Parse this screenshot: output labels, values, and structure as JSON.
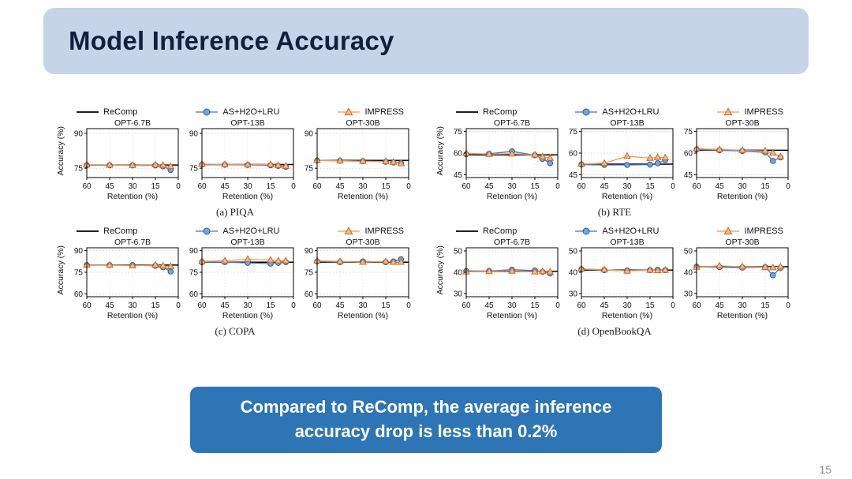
{
  "slide": {
    "title": "Model Inference Accuracy",
    "page_number": "15",
    "callout": {
      "line1": "Compared to ReComp, the average inference",
      "line2": "accuracy drop is less than 0.2%"
    }
  },
  "legend": [
    "ReComp",
    "AS+H2O+LRU",
    "IMPRESS"
  ],
  "colors": {
    "header_bg": "#c6d4ea",
    "title_text": "#13203c",
    "callout_bg": "#2e75b6",
    "recomp_line": "#000000",
    "as_line": "#4472c4",
    "as_fill": "#6fa8dc",
    "as_edge": "#2e5b9e",
    "impress_line": "#ef9a4f",
    "impress_fill": "#f6b98b",
    "impress_edge": "#c96a1f"
  },
  "chart_data": [
    {
      "caption": "(a) PIQA",
      "xlabel": "Retention (%)",
      "ylabel": "Accuracy (%)",
      "x": [
        60,
        45,
        30,
        15,
        10,
        5
      ],
      "xticks": [
        60,
        45,
        30,
        15,
        0
      ],
      "subplots": [
        {
          "title": "OPT-6.7B",
          "ylim": [
            71,
            92
          ],
          "yticks": [
            75,
            90
          ],
          "series": [
            {
              "name": "ReComp",
              "value": 76.4
            },
            {
              "name": "AS+H2O+LRU",
              "values": [
                76.3,
                76.3,
                76.2,
                76.2,
                75.8,
                74.3
              ]
            },
            {
              "name": "IMPRESS",
              "values": [
                76.5,
                76.4,
                76.3,
                76.5,
                76.2,
                75.8
              ]
            }
          ]
        },
        {
          "title": "OPT-13B",
          "ylim": [
            71,
            92
          ],
          "yticks": [
            75,
            90
          ],
          "series": [
            {
              "name": "ReComp",
              "value": 76.6
            },
            {
              "name": "AS+H2O+LRU",
              "values": [
                76.6,
                76.5,
                76.4,
                76.3,
                76.0,
                75.6
              ]
            },
            {
              "name": "IMPRESS",
              "values": [
                76.8,
                76.6,
                76.5,
                76.6,
                76.2,
                75.9
              ]
            }
          ]
        },
        {
          "title": "OPT-30B",
          "ylim": [
            71,
            92
          ],
          "yticks": [
            75,
            90
          ],
          "series": [
            {
              "name": "ReComp",
              "value": 78.4
            },
            {
              "name": "AS+H2O+LRU",
              "values": [
                78.3,
                78.2,
                78.0,
                77.8,
                77.5,
                77.2
              ]
            },
            {
              "name": "IMPRESS",
              "values": [
                78.4,
                78.2,
                78.0,
                77.9,
                77.6,
                77.0
              ]
            }
          ]
        }
      ]
    },
    {
      "caption": "(b) RTE",
      "xlabel": "Retention (%)",
      "ylabel": "Accuracy (%)",
      "x": [
        60,
        45,
        30,
        15,
        10,
        5
      ],
      "xticks": [
        60,
        45,
        30,
        15,
        0
      ],
      "subplots": [
        {
          "title": "OPT-6.7B",
          "ylim": [
            43,
            77
          ],
          "yticks": [
            45,
            60,
            75
          ],
          "series": [
            {
              "name": "ReComp",
              "value": 58.8
            },
            {
              "name": "AS+H2O+LRU",
              "values": [
                59.2,
                59.5,
                61.2,
                58.5,
                56.0,
                53.0
              ]
            },
            {
              "name": "IMPRESS",
              "values": [
                59.9,
                59.2,
                59.5,
                58.8,
                57.5,
                56.5
              ]
            }
          ]
        },
        {
          "title": "OPT-13B",
          "ylim": [
            43,
            77
          ],
          "yticks": [
            45,
            60,
            75
          ],
          "series": [
            {
              "name": "ReComp",
              "value": 52.3
            },
            {
              "name": "AS+H2O+LRU",
              "values": [
                52.0,
                51.8,
                51.8,
                52.0,
                53.0,
                55.2
              ]
            },
            {
              "name": "IMPRESS",
              "values": [
                52.3,
                53.0,
                57.8,
                56.5,
                57.0,
                56.8
              ]
            }
          ]
        },
        {
          "title": "OPT-30B",
          "ylim": [
            43,
            77
          ],
          "yticks": [
            45,
            60,
            75
          ],
          "series": [
            {
              "name": "ReComp",
              "value": 62.0
            },
            {
              "name": "AS+H2O+LRU",
              "values": [
                62.5,
                62.0,
                61.5,
                60.5,
                54.5,
                57.0
              ]
            },
            {
              "name": "IMPRESS",
              "values": [
                63.0,
                62.5,
                62.0,
                61.5,
                60.0,
                57.5
              ]
            }
          ]
        }
      ]
    },
    {
      "caption": "(c) COPA",
      "xlabel": "Retention (%)",
      "ylabel": "Accuracy (%)",
      "x": [
        60,
        45,
        30,
        15,
        10,
        5
      ],
      "xticks": [
        60,
        45,
        30,
        15,
        0
      ],
      "subplots": [
        {
          "title": "OPT-6.7B",
          "ylim": [
            58,
            92
          ],
          "yticks": [
            60,
            75,
            90
          ],
          "series": [
            {
              "name": "ReComp",
              "value": 80.0
            },
            {
              "name": "AS+H2O+LRU",
              "values": [
                80.0,
                80.0,
                80.0,
                79.5,
                78.5,
                75.5
              ]
            },
            {
              "name": "IMPRESS",
              "values": [
                80.0,
                80.0,
                79.5,
                80.0,
                79.5,
                79.0
              ]
            }
          ]
        },
        {
          "title": "OPT-13B",
          "ylim": [
            58,
            92
          ],
          "yticks": [
            60,
            75,
            90
          ],
          "series": [
            {
              "name": "ReComp",
              "value": 82.0
            },
            {
              "name": "AS+H2O+LRU",
              "values": [
                82.0,
                82.0,
                81.5,
                81.0,
                81.5,
                82.0
              ]
            },
            {
              "name": "IMPRESS",
              "values": [
                82.5,
                83.0,
                84.0,
                83.5,
                83.0,
                83.0
              ]
            }
          ]
        },
        {
          "title": "OPT-30B",
          "ylim": [
            58,
            92
          ],
          "yticks": [
            60,
            75,
            90
          ],
          "series": [
            {
              "name": "ReComp",
              "value": 82.0
            },
            {
              "name": "AS+H2O+LRU",
              "values": [
                82.5,
                82.0,
                82.5,
                82.0,
                82.5,
                84.0
              ]
            },
            {
              "name": "IMPRESS",
              "values": [
                83.0,
                82.5,
                82.0,
                82.5,
                82.0,
                82.0
              ]
            }
          ]
        }
      ]
    },
    {
      "caption": "(d) OpenBookQA",
      "xlabel": "Retention (%)",
      "ylabel": "Accuracy (%)",
      "x": [
        60,
        45,
        30,
        15,
        10,
        5
      ],
      "xticks": [
        60,
        45,
        30,
        15,
        0
      ],
      "subplots": [
        {
          "title": "OPT-6.7B",
          "ylim": [
            28.5,
            51.5
          ],
          "yticks": [
            30,
            40,
            50
          ],
          "series": [
            {
              "name": "ReComp",
              "value": 40.4
            },
            {
              "name": "AS+H2O+LRU",
              "values": [
                40.6,
                40.6,
                41.2,
                40.8,
                40.2,
                39.4
              ]
            },
            {
              "name": "IMPRESS",
              "values": [
                40.2,
                40.4,
                40.6,
                40.2,
                40.4,
                40.2
              ]
            }
          ]
        },
        {
          "title": "OPT-13B",
          "ylim": [
            28.5,
            51.5
          ],
          "yticks": [
            30,
            40,
            50
          ],
          "series": [
            {
              "name": "ReComp",
              "value": 41.0
            },
            {
              "name": "AS+H2O+LRU",
              "values": [
                41.4,
                41.0,
                40.8,
                41.0,
                41.2,
                41.0
              ]
            },
            {
              "name": "IMPRESS",
              "values": [
                41.6,
                41.2,
                40.6,
                41.0,
                40.8,
                41.0
              ]
            }
          ]
        },
        {
          "title": "OPT-30B",
          "ylim": [
            28.5,
            51.5
          ],
          "yticks": [
            30,
            40,
            50
          ],
          "series": [
            {
              "name": "ReComp",
              "value": 42.6
            },
            {
              "name": "AS+H2O+LRU",
              "values": [
                42.6,
                42.4,
                42.2,
                42.4,
                38.6,
                42.0
              ]
            },
            {
              "name": "IMPRESS",
              "values": [
                42.4,
                43.0,
                42.6,
                42.4,
                42.2,
                42.6
              ]
            }
          ]
        }
      ]
    }
  ]
}
